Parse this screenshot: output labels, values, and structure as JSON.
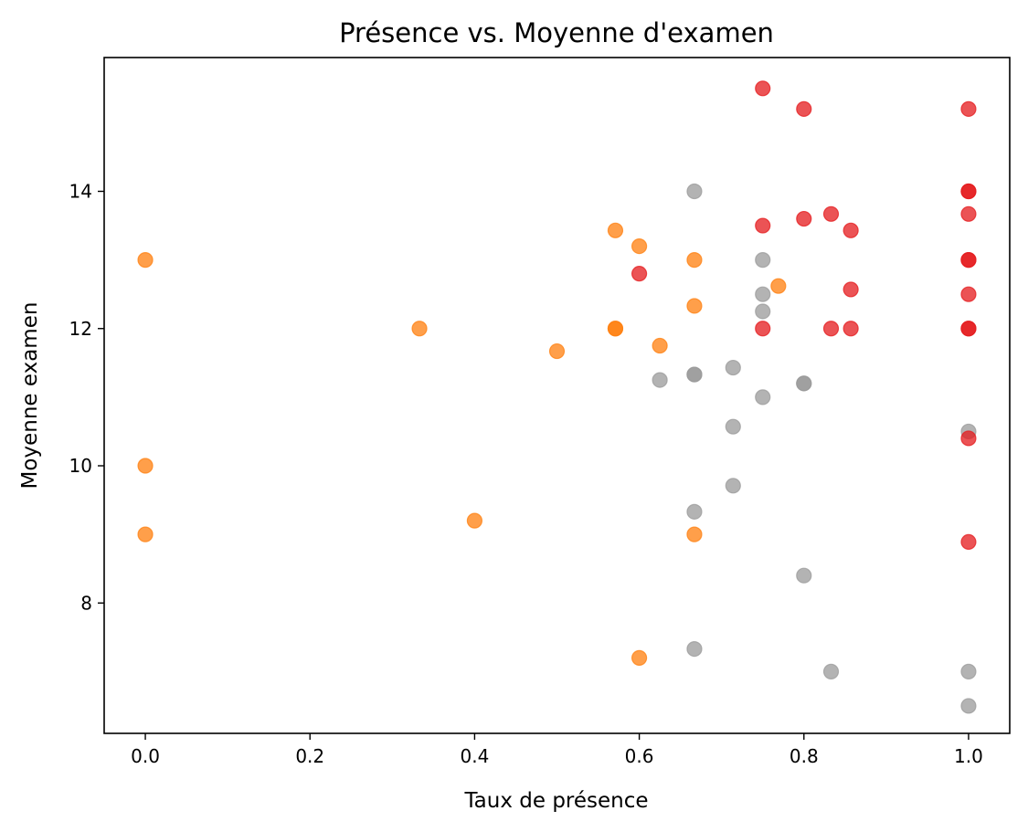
{
  "chart_data": {
    "type": "scatter",
    "title": "Présence vs. Moyenne d'examen",
    "xlabel": "Taux de présence",
    "ylabel": "Moyenne examen",
    "xlim": [
      -0.05,
      1.05
    ],
    "ylim": [
      6.1,
      15.95
    ],
    "x_ticks": [
      {
        "value": 0.0,
        "label": "0.0"
      },
      {
        "value": 0.2,
        "label": "0.2"
      },
      {
        "value": 0.4,
        "label": "0.4"
      },
      {
        "value": 0.6,
        "label": "0.6"
      },
      {
        "value": 0.8,
        "label": "0.8"
      },
      {
        "value": 1.0,
        "label": "1.0"
      }
    ],
    "y_ticks": [
      {
        "value": 8,
        "label": "8"
      },
      {
        "value": 10,
        "label": "10"
      },
      {
        "value": 12,
        "label": "12"
      },
      {
        "value": 14,
        "label": "14"
      }
    ],
    "grid": false,
    "alpha": 0.75,
    "series": [
      {
        "color": "#ff7f0e",
        "points": [
          [
            0.0,
            13.0
          ],
          [
            0.0,
            10.0
          ],
          [
            0.0,
            9.0
          ],
          [
            0.333,
            12.0
          ],
          [
            0.4,
            9.2
          ],
          [
            0.5,
            11.67
          ],
          [
            0.571,
            13.43
          ],
          [
            0.571,
            12.0
          ],
          [
            0.571,
            12.0
          ],
          [
            0.6,
            13.2
          ],
          [
            0.6,
            7.2
          ],
          [
            0.625,
            11.75
          ],
          [
            0.667,
            13.0
          ],
          [
            0.667,
            12.33
          ],
          [
            0.667,
            9.0
          ],
          [
            0.769,
            12.62
          ]
        ]
      },
      {
        "color": "#999999",
        "points": [
          [
            0.625,
            11.25
          ],
          [
            0.667,
            14.0
          ],
          [
            0.667,
            11.33
          ],
          [
            0.667,
            11.33
          ],
          [
            0.667,
            9.33
          ],
          [
            0.667,
            7.33
          ],
          [
            0.714,
            11.43
          ],
          [
            0.714,
            10.57
          ],
          [
            0.714,
            9.71
          ],
          [
            0.75,
            13.0
          ],
          [
            0.75,
            12.5
          ],
          [
            0.75,
            12.25
          ],
          [
            0.75,
            11.0
          ],
          [
            0.8,
            11.2
          ],
          [
            0.8,
            11.2
          ],
          [
            0.8,
            8.4
          ],
          [
            0.833,
            7.0
          ],
          [
            1.0,
            10.5
          ],
          [
            1.0,
            7.0
          ],
          [
            1.0,
            6.5
          ]
        ]
      },
      {
        "color": "#e41a1c",
        "points": [
          [
            0.6,
            12.8
          ],
          [
            0.75,
            15.5
          ],
          [
            0.75,
            13.5
          ],
          [
            0.75,
            12.0
          ],
          [
            0.8,
            15.2
          ],
          [
            0.8,
            13.6
          ],
          [
            0.833,
            13.67
          ],
          [
            0.833,
            12.0
          ],
          [
            0.857,
            13.43
          ],
          [
            0.857,
            12.57
          ],
          [
            0.857,
            12.0
          ],
          [
            1.0,
            15.2
          ],
          [
            1.0,
            14.0
          ],
          [
            1.0,
            14.0
          ],
          [
            1.0,
            13.67
          ],
          [
            1.0,
            13.0
          ],
          [
            1.0,
            13.0
          ],
          [
            1.0,
            12.5
          ],
          [
            1.0,
            12.0
          ],
          [
            1.0,
            12.0
          ],
          [
            1.0,
            10.4
          ],
          [
            1.0,
            8.89
          ]
        ]
      }
    ]
  }
}
